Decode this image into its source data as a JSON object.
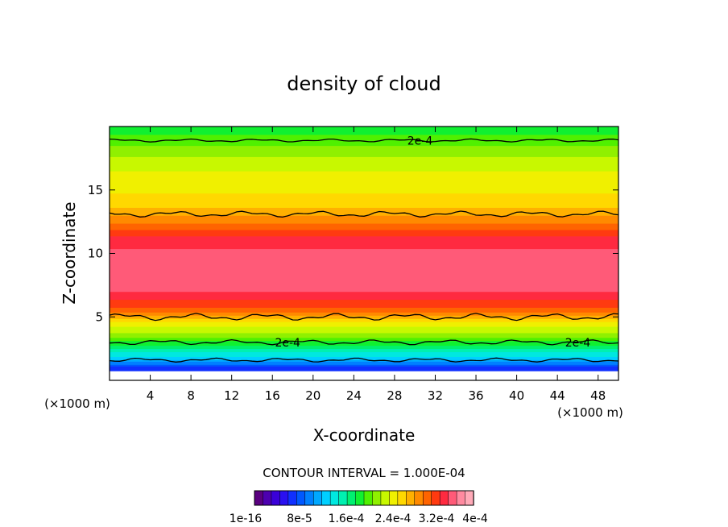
{
  "chart_data": {
    "type": "heatmap",
    "title": "density of cloud",
    "xlabel": "X-coordinate",
    "ylabel": "Z-coordinate",
    "x_unit": "(×1000 m)",
    "z_unit": "(×1000 m)",
    "xlim": [
      0,
      50
    ],
    "ylim": [
      0,
      20
    ],
    "x_ticks": [
      4,
      8,
      12,
      16,
      20,
      24,
      28,
      32,
      36,
      40,
      44,
      48
    ],
    "y_ticks": [
      5,
      10,
      15
    ],
    "contour_interval_text": "CONTOUR INTERVAL = 1.000E-04",
    "contour_labels": [
      {
        "text": "2e-4",
        "x": 30.5,
        "z": 18.9
      },
      {
        "text": "2e-4",
        "x": 17.5,
        "z": 3.0
      },
      {
        "text": "2e-4",
        "x": 46.0,
        "z": 3.0
      }
    ],
    "profile_z": [
      1.0,
      1.5,
      2.5,
      3.5,
      4.5,
      5.5,
      7.0,
      9.0,
      11.0,
      12.5,
      14.0,
      16.0,
      17.5,
      19.0,
      20.0
    ],
    "profile_value_e4": [
      0.6,
      1.1,
      1.7,
      2.2,
      2.6,
      3.2,
      3.6,
      3.7,
      3.55,
      3.1,
      2.7,
      2.55,
      2.35,
      2.05,
      1.9
    ],
    "colorbar": {
      "colors": [
        "#5a0080",
        "#4d00b0",
        "#3a00d8",
        "#2a10f0",
        "#1030ff",
        "#0058ff",
        "#0080ff",
        "#00a8ff",
        "#00d0ff",
        "#00e8e0",
        "#00f0b0",
        "#00f070",
        "#10f030",
        "#50f000",
        "#90f000",
        "#c8f800",
        "#f0f000",
        "#ffd800",
        "#ffb000",
        "#ff8a00",
        "#ff6400",
        "#ff3a10",
        "#ff2a40",
        "#ff5a78",
        "#ff8aa0",
        "#ffaab8"
      ],
      "tick_labels": [
        "1e-16",
        "8e-5",
        "1.6e-4",
        "2.4e-4",
        "3.2e-4",
        "4e-4"
      ]
    }
  }
}
